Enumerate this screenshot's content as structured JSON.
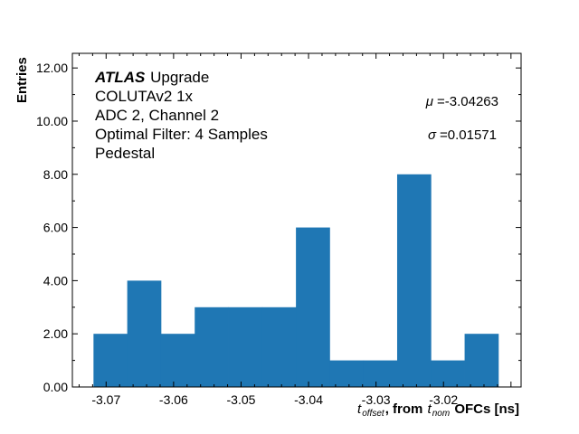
{
  "chart_data": {
    "type": "bar",
    "histogram": true,
    "bin_edges": [
      -3.07187,
      -3.06687,
      -3.06187,
      -3.05687,
      -3.05187,
      -3.04687,
      -3.04187,
      -3.03687,
      -3.03187,
      -3.02687,
      -3.02187,
      -3.01687,
      -3.01187
    ],
    "values": [
      2,
      4,
      2,
      3,
      3,
      3,
      6,
      1,
      1,
      8,
      1,
      2
    ],
    "color": "#1f77b4",
    "xlim": [
      -3.075,
      -3.0085
    ],
    "ylim": [
      0,
      12.55
    ],
    "xticks": [
      "-3.07",
      "-3.06",
      "-3.05",
      "-3.04",
      "-3.03",
      "-3.02"
    ],
    "xtick_values": [
      -3.07,
      -3.06,
      -3.05,
      -3.04,
      -3.03,
      -3.02
    ],
    "yticks": [
      "0.00",
      "2.00",
      "4.00",
      "6.00",
      "8.00",
      "10.00",
      "12.00"
    ],
    "ytick_values": [
      0,
      2,
      4,
      6,
      8,
      10,
      12
    ],
    "ylabel": "Entries",
    "xlabel": {
      "t1": "t",
      "sub1": "offset",
      "mid": ", from ",
      "t2": "t",
      "sub2": "nom",
      "tail": " OFCs [ns]"
    },
    "grid": false,
    "annotations": {
      "atlas": "ATLAS",
      "upgrade": " Upgrade",
      "lines": [
        "COLUTAv2 1x",
        "ADC 2, Channel 2",
        "Optimal Filter: 4 Samples",
        "Pedestal"
      ],
      "mu_sym": "μ",
      "mu": "=-3.04263",
      "sigma_sym": "σ",
      "sigma": "=0.01571"
    }
  }
}
